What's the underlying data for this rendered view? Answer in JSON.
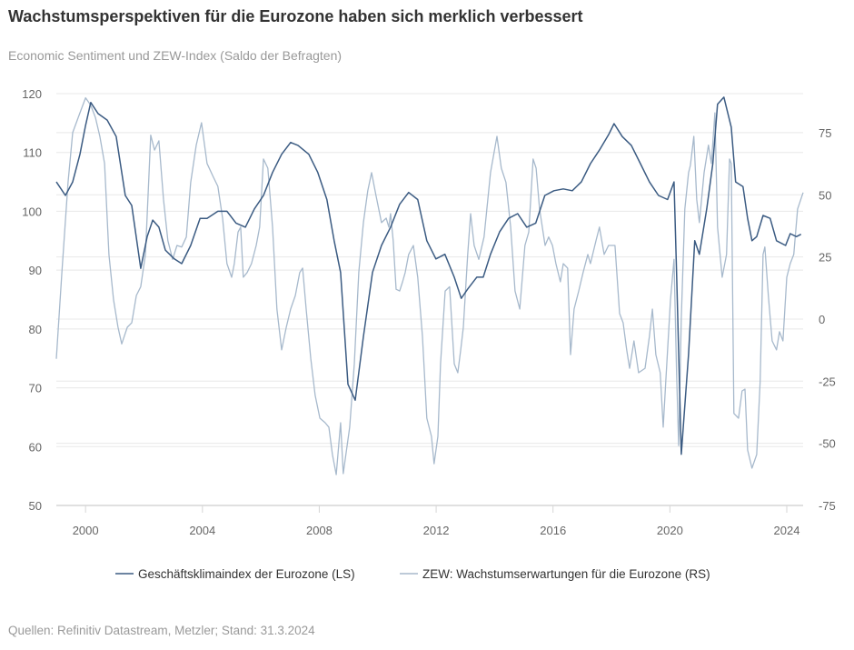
{
  "title": "Wachstumsperspektiven für die Eurozone haben sich merklich verbessert",
  "subtitle": "Economic Sentiment und ZEW-Index (Saldo der Befragten)",
  "source": "Quellen: Refinitiv Datastream, Metzler; Stand: 31.3.2024",
  "chart_data": {
    "type": "line",
    "title": "Wachstumsperspektiven für die Eurozone haben sich merklich verbessert",
    "subtitle": "Economic Sentiment und ZEW-Index (Saldo der Befragten)",
    "grid": true,
    "legend_position": "bottom",
    "xlim": [
      1999.0,
      2024.56
    ],
    "x_ticks": [
      "2000",
      "2004",
      "2008",
      "2012",
      "2016",
      "2020",
      "2024"
    ],
    "y_left": {
      "ylim": [
        50,
        120
      ],
      "ticks": [
        "50",
        "60",
        "70",
        "80",
        "90",
        "100",
        "110",
        "120"
      ]
    },
    "y_right": {
      "ylim": [
        -75,
        90.7
      ],
      "ticks": [
        "-75",
        "-50",
        "-25",
        "0",
        "25",
        "50",
        "75"
      ]
    },
    "series": [
      {
        "name": "Geschäftsklimaindex der Eurozone (LS)",
        "axis": "left",
        "color": "#3b5b82",
        "x": [
          1999.0,
          1999.31,
          1999.56,
          1999.81,
          2000.0,
          2000.18,
          2000.43,
          2000.74,
          2001.05,
          2001.36,
          2001.58,
          2001.89,
          2002.11,
          2002.3,
          2002.51,
          2002.73,
          2003.04,
          2003.29,
          2003.6,
          2003.92,
          2004.16,
          2004.53,
          2004.84,
          2005.15,
          2005.47,
          2005.78,
          2006.09,
          2006.4,
          2006.71,
          2007.02,
          2007.27,
          2007.64,
          2007.95,
          2008.26,
          2008.51,
          2008.73,
          2008.98,
          2009.23,
          2009.51,
          2009.82,
          2010.13,
          2010.44,
          2010.75,
          2011.06,
          2011.37,
          2011.68,
          2011.99,
          2012.3,
          2012.62,
          2012.86,
          2013.08,
          2013.39,
          2013.61,
          2013.86,
          2014.17,
          2014.48,
          2014.79,
          2015.1,
          2015.41,
          2015.72,
          2016.03,
          2016.35,
          2016.66,
          2016.97,
          2017.28,
          2017.59,
          2017.9,
          2018.09,
          2018.37,
          2018.68,
          2018.99,
          2019.3,
          2019.61,
          2019.92,
          2020.14,
          2020.23,
          2020.39,
          2020.64,
          2020.85,
          2021.01,
          2021.26,
          2021.47,
          2021.63,
          2021.85,
          2022.1,
          2022.25,
          2022.5,
          2022.66,
          2022.81,
          2022.97,
          2023.19,
          2023.43,
          2023.65,
          2023.96,
          2024.12,
          2024.33,
          2024.49
        ],
        "y": [
          105,
          102.7,
          105,
          109.7,
          114.6,
          118.5,
          116.6,
          115.5,
          112.7,
          102.7,
          101,
          90.3,
          95.7,
          98.5,
          97.3,
          93.4,
          91.9,
          91.1,
          94.2,
          98.8,
          98.8,
          100,
          100,
          98,
          97.3,
          100.4,
          102.7,
          106.6,
          109.7,
          111.7,
          111.2,
          109.7,
          106.6,
          102,
          95,
          89.6,
          70.6,
          67.9,
          78.7,
          89.6,
          94.2,
          97.3,
          101.2,
          103.2,
          102,
          95,
          91.9,
          92.7,
          88.8,
          85.2,
          86.8,
          88.8,
          88.8,
          92.7,
          96.5,
          98.8,
          99.6,
          97.3,
          98,
          102.7,
          103.5,
          103.8,
          103.5,
          105,
          108.1,
          110.4,
          113,
          114.9,
          112.7,
          111.2,
          108.1,
          105,
          102.7,
          102,
          105,
          89.6,
          58.7,
          75.7,
          95,
          92.7,
          100.4,
          108.1,
          118.2,
          119.4,
          114.3,
          105,
          104.2,
          98.8,
          95,
          95.7,
          99.3,
          98.8,
          95,
          94.2,
          96.2,
          95.7,
          96.1
        ]
      },
      {
        "name": "ZEW: Wachstumserwartungen für die Eurozone (RS)",
        "axis": "right",
        "color": "#a7b9cc",
        "x": [
          1999.0,
          1999.19,
          1999.4,
          1999.56,
          1999.81,
          2000.0,
          2000.18,
          2000.34,
          2000.49,
          2000.65,
          2000.8,
          2000.96,
          2001.11,
          2001.24,
          2001.43,
          2001.58,
          2001.74,
          2001.89,
          2002.05,
          2002.23,
          2002.36,
          2002.51,
          2002.67,
          2002.82,
          2002.98,
          2003.13,
          2003.29,
          2003.45,
          2003.6,
          2003.79,
          2003.97,
          2004.16,
          2004.38,
          2004.53,
          2004.69,
          2004.84,
          2005.0,
          2005.09,
          2005.22,
          2005.31,
          2005.4,
          2005.53,
          2005.68,
          2005.84,
          2005.96,
          2006.09,
          2006.24,
          2006.4,
          2006.55,
          2006.71,
          2006.87,
          2007.02,
          2007.18,
          2007.33,
          2007.43,
          2007.55,
          2007.71,
          2007.86,
          2008.02,
          2008.2,
          2008.33,
          2008.45,
          2008.58,
          2008.73,
          2008.82,
          2009.04,
          2009.2,
          2009.35,
          2009.51,
          2009.66,
          2009.79,
          2009.94,
          2010.13,
          2010.29,
          2010.38,
          2010.44,
          2010.53,
          2010.63,
          2010.75,
          2010.85,
          2010.94,
          2011.06,
          2011.22,
          2011.37,
          2011.53,
          2011.68,
          2011.84,
          2011.93,
          2012.06,
          2012.15,
          2012.31,
          2012.46,
          2012.62,
          2012.74,
          2012.84,
          2012.93,
          2013.08,
          2013.18,
          2013.3,
          2013.46,
          2013.64,
          2013.86,
          2014.08,
          2014.23,
          2014.39,
          2014.55,
          2014.7,
          2014.86,
          2015.04,
          2015.17,
          2015.32,
          2015.42,
          2015.54,
          2015.73,
          2015.85,
          2015.98,
          2016.1,
          2016.25,
          2016.35,
          2016.5,
          2016.6,
          2016.72,
          2016.88,
          2017.03,
          2017.19,
          2017.28,
          2017.47,
          2017.59,
          2017.75,
          2017.9,
          2018.12,
          2018.28,
          2018.4,
          2018.52,
          2018.62,
          2018.77,
          2018.93,
          2019.15,
          2019.3,
          2019.4,
          2019.52,
          2019.67,
          2019.77,
          2019.86,
          2020.02,
          2020.14,
          2020.23,
          2020.3,
          2020.39,
          2020.51,
          2020.64,
          2020.7,
          2020.82,
          2020.92,
          2021.01,
          2021.17,
          2021.32,
          2021.42,
          2021.54,
          2021.63,
          2021.79,
          2021.94,
          2022.04,
          2022.1,
          2022.19,
          2022.35,
          2022.47,
          2022.57,
          2022.66,
          2022.81,
          2022.97,
          2023.09,
          2023.19,
          2023.25,
          2023.37,
          2023.5,
          2023.65,
          2023.75,
          2023.87,
          2024.0,
          2024.12,
          2024.24,
          2024.37,
          2024.56
        ],
        "y": [
          -16,
          18.7,
          55,
          75,
          83,
          89,
          86,
          81,
          73.5,
          62.6,
          26,
          7.7,
          -3.3,
          -10,
          -3.3,
          -1.5,
          9.5,
          13,
          26,
          74,
          68,
          71.7,
          48,
          31.5,
          24,
          29.6,
          29,
          33,
          55,
          70,
          79,
          62.6,
          57,
          53.4,
          40.6,
          22.3,
          16.8,
          22.3,
          35,
          37,
          16.8,
          18.7,
          22.3,
          29.6,
          37,
          64.4,
          60.7,
          37,
          4,
          -12.4,
          -3.3,
          4,
          9.5,
          18.7,
          20.5,
          4,
          -16,
          -30.7,
          -39.9,
          -41.7,
          -43.5,
          -54.5,
          -62.6,
          -41.7,
          -62.2,
          -43.5,
          -18,
          18.7,
          38.8,
          51.6,
          58.9,
          49.8,
          38.8,
          40.6,
          37,
          42.4,
          31.5,
          12,
          11.3,
          15,
          18.7,
          26,
          29.6,
          16.8,
          -7,
          -39.9,
          -47.2,
          -58.2,
          -47.2,
          -18,
          11.3,
          13,
          -18,
          -21.6,
          -12.4,
          -3.3,
          26,
          42.4,
          29.6,
          24,
          33,
          58.9,
          73.5,
          60.7,
          55,
          37,
          11.3,
          4,
          29.6,
          35,
          64.4,
          60.7,
          44.3,
          29.6,
          33,
          29.6,
          22.3,
          15,
          22.3,
          20.5,
          -14.3,
          4,
          11.3,
          18.7,
          26,
          22.3,
          31.5,
          37,
          26,
          29.6,
          29.6,
          2.2,
          -1.5,
          -12.4,
          -19.8,
          -8.8,
          -21.6,
          -19.8,
          -7,
          4,
          -14.3,
          -21.6,
          -43.5,
          -25.2,
          7.7,
          24,
          -21.6,
          -50.9,
          0.4,
          44.3,
          58.9,
          61.8,
          73.5,
          48,
          38.8,
          58.9,
          70,
          62.6,
          83,
          37,
          16.8,
          26,
          64.4,
          62.6,
          -38,
          -39.9,
          -28.9,
          -28.2,
          -52.7,
          -60,
          -54.5,
          -25.2,
          26,
          29,
          9.5,
          -8.8,
          -12.4,
          -5.1,
          -8.8,
          16.8,
          22.3,
          26,
          44.3,
          50.9
        ]
      }
    ]
  }
}
